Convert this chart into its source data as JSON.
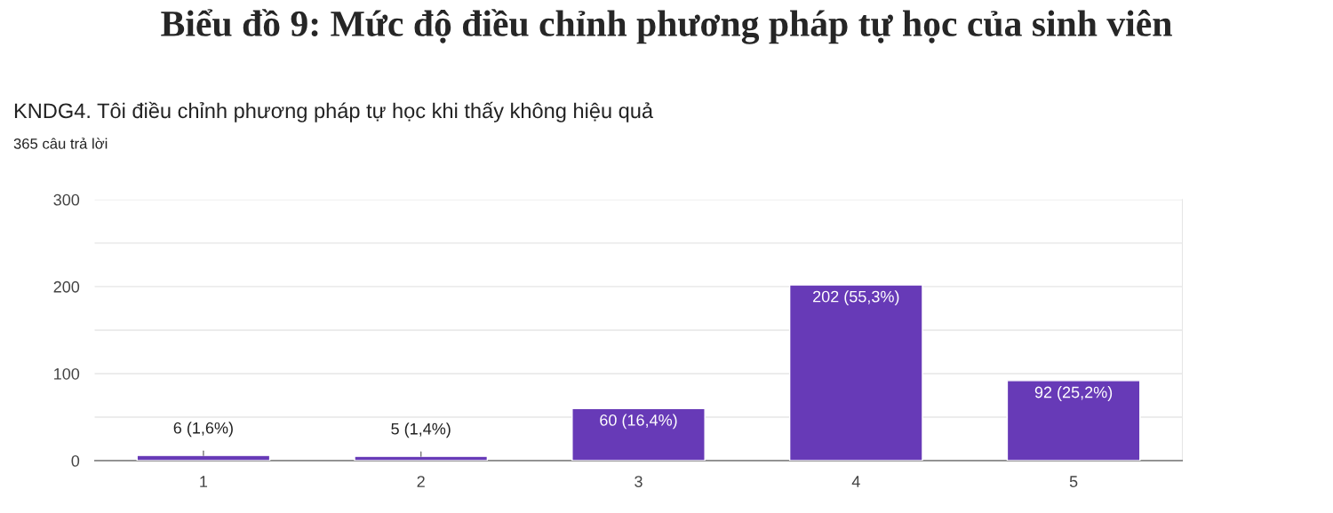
{
  "chart_data": {
    "type": "bar",
    "title": "Biểu đồ 9: Mức độ điều chỉnh phương pháp tự học của sinh viên",
    "subtitle": "KNDG4. Tôi điều chỉnh phương pháp tự học khi thấy không hiệu quả",
    "annotations": [
      "365 câu trả lời"
    ],
    "categories": [
      "1",
      "2",
      "3",
      "4",
      "5"
    ],
    "values": [
      6,
      5,
      60,
      202,
      92
    ],
    "value_labels": [
      "6 (1,6%)",
      "5 (1,4%)",
      "60 (16,4%)",
      "202 (55,3%)",
      "92 (25,2%)"
    ],
    "color": "#673ab7",
    "ylim": [
      0,
      300
    ],
    "yticks": [
      0,
      {
        "value": 50,
        "label": null
      },
      100,
      {
        "value": 150,
        "label": null
      },
      200,
      {
        "value": 250,
        "label": null
      },
      300
    ],
    "grid": "y"
  }
}
